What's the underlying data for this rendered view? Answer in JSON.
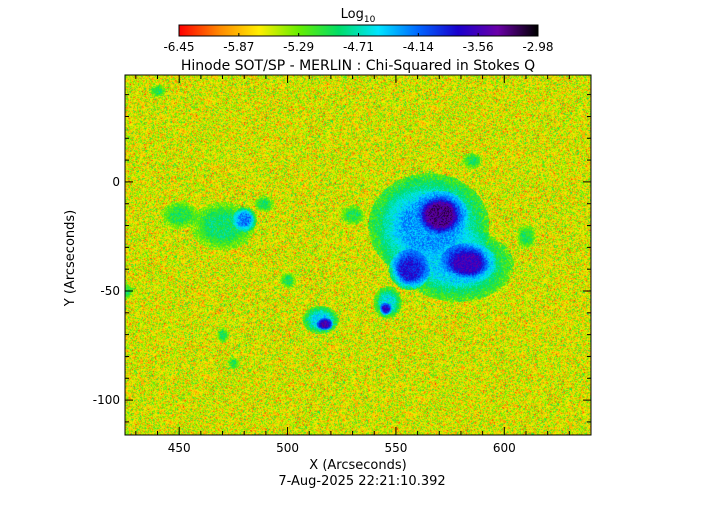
{
  "chart_data": {
    "type": "heatmap",
    "title": "Hinode SOT/SP - MERLIN : Chi-Squared in Stokes Q",
    "xlabel": "X (Arcseconds)",
    "ylabel": "Y (Arcseconds)",
    "timestamp": "7-Aug-2025 22:21:10.392",
    "xlim": [
      425,
      640
    ],
    "ylim": [
      -116,
      49
    ],
    "x_ticks": [
      450,
      500,
      550,
      600
    ],
    "y_ticks": [
      0,
      -50,
      -100
    ],
    "colorbar": {
      "label_base": "Log",
      "label_sub": "10",
      "min": -6.45,
      "max": -2.98,
      "tick_labels": [
        "-6.45",
        "-5.87",
        "-5.29",
        "-4.71",
        "-4.14",
        "-3.56",
        "-2.98"
      ],
      "colors": [
        "#ff0000",
        "#ff8800",
        "#ffee00",
        "#66ee00",
        "#00dd66",
        "#00e5ff",
        "#0066ff",
        "#1a00cc",
        "#6a00a8",
        "#000000"
      ]
    },
    "background_value": -5.6,
    "regions": [
      {
        "x": 570,
        "y": -15,
        "rx": 14,
        "ry": 12,
        "value": -3.3
      },
      {
        "x": 565,
        "y": -20,
        "rx": 30,
        "ry": 26,
        "value": -4.3
      },
      {
        "x": 583,
        "y": -37,
        "rx": 14,
        "ry": 10,
        "value": -3.6
      },
      {
        "x": 578,
        "y": -38,
        "rx": 28,
        "ry": 18,
        "value": -4.5
      },
      {
        "x": 556,
        "y": -40,
        "rx": 10,
        "ry": 10,
        "value": -3.8
      },
      {
        "x": 556,
        "y": -25,
        "rx": 14,
        "ry": 24,
        "value": -4.8
      },
      {
        "x": 470,
        "y": -20,
        "rx": 16,
        "ry": 12,
        "value": -4.9
      },
      {
        "x": 480,
        "y": -17,
        "rx": 6,
        "ry": 6,
        "value": -4.2
      },
      {
        "x": 450,
        "y": -15,
        "rx": 9,
        "ry": 7,
        "value": -5.0
      },
      {
        "x": 515,
        "y": -63,
        "rx": 9,
        "ry": 7,
        "value": -4.5
      },
      {
        "x": 517,
        "y": -65,
        "rx": 4,
        "ry": 3,
        "value": -3.5
      },
      {
        "x": 546,
        "y": -55,
        "rx": 7,
        "ry": 8,
        "value": -4.6
      },
      {
        "x": 545,
        "y": -58,
        "rx": 3,
        "ry": 3,
        "value": -3.7
      },
      {
        "x": 489,
        "y": -10,
        "rx": 5,
        "ry": 4,
        "value": -5.0
      },
      {
        "x": 440,
        "y": 42,
        "rx": 4,
        "ry": 3,
        "value": -5.0
      },
      {
        "x": 470,
        "y": -70,
        "rx": 3,
        "ry": 4,
        "value": -5.0
      },
      {
        "x": 475,
        "y": -83,
        "rx": 3,
        "ry": 3,
        "value": -5.0
      },
      {
        "x": 530,
        "y": -15,
        "rx": 6,
        "ry": 5,
        "value": -5.0
      },
      {
        "x": 585,
        "y": 10,
        "rx": 5,
        "ry": 4,
        "value": -5.0
      },
      {
        "x": 610,
        "y": -25,
        "rx": 5,
        "ry": 6,
        "value": -5.0
      },
      {
        "x": 500,
        "y": -45,
        "rx": 4,
        "ry": 4,
        "value": -5.0
      },
      {
        "x": 425,
        "y": -50,
        "rx": 4,
        "ry": 4,
        "value": -5.0
      }
    ]
  }
}
